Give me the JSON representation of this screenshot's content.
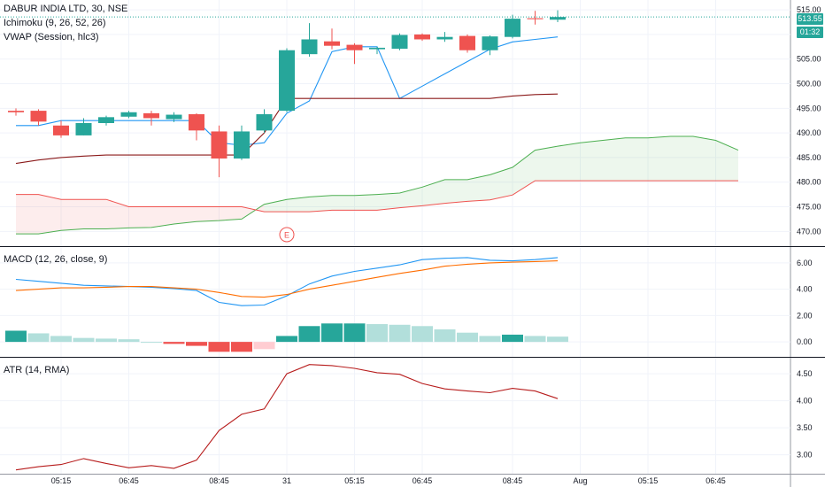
{
  "header": {
    "title": "DABUR INDIA LTD, 30, NSE",
    "ichimoku": "Ichimoku (9, 26, 52, 26)",
    "vwap": "VWAP (Session, hlc3)",
    "macd": "MACD (12, 26, close, 9)",
    "atr": "ATR (14, RMA)"
  },
  "price_tags": {
    "last": "513.55",
    "timer": "01:32"
  },
  "earnings_marker": "E",
  "colors": {
    "up": "#26a69a",
    "down": "#ef5350",
    "vwap": "#2196f3",
    "cloud_up": "#4caf50",
    "cloud_down": "#ef5350",
    "lagging": "#8b1a1a",
    "macd": "#2196f3",
    "signal": "#ff6d00",
    "atr": "#b71c1c"
  },
  "chart_data": [
    {
      "type": "candlestick",
      "title": "DABUR INDIA LTD, 30, NSE",
      "ylim": [
        467,
        517
      ],
      "y_ticks": [
        470,
        475,
        480,
        485,
        490,
        495,
        500,
        505,
        510,
        515
      ],
      "x_tick_labels": [
        {
          "i": 2,
          "label": "05:15"
        },
        {
          "i": 5,
          "label": "06:45"
        },
        {
          "i": 9,
          "label": "08:45"
        },
        {
          "i": 12,
          "label": "31"
        },
        {
          "i": 15,
          "label": "05:15"
        },
        {
          "i": 18,
          "label": "06:45"
        },
        {
          "i": 22,
          "label": "08:45"
        },
        {
          "i": 25,
          "label": "Aug"
        },
        {
          "i": 28,
          "label": "05:15"
        },
        {
          "i": 31,
          "label": "06:45"
        }
      ],
      "candles": [
        {
          "o": 494.5,
          "h": 495.0,
          "l": 493.5,
          "c": 494.2
        },
        {
          "o": 494.5,
          "h": 494.8,
          "l": 491.5,
          "c": 492.3
        },
        {
          "o": 491.5,
          "h": 492.5,
          "l": 489.0,
          "c": 489.5
        },
        {
          "o": 489.5,
          "h": 493.0,
          "l": 489.5,
          "c": 492.0
        },
        {
          "o": 492.0,
          "h": 493.5,
          "l": 491.5,
          "c": 493.2
        },
        {
          "o": 493.3,
          "h": 494.5,
          "l": 493.0,
          "c": 494.2
        },
        {
          "o": 494.0,
          "h": 494.5,
          "l": 491.5,
          "c": 493.0
        },
        {
          "o": 492.8,
          "h": 494.2,
          "l": 492.2,
          "c": 493.7
        },
        {
          "o": 493.8,
          "h": 494.0,
          "l": 488.5,
          "c": 490.5
        },
        {
          "o": 490.3,
          "h": 491.5,
          "l": 481.0,
          "c": 484.8
        },
        {
          "o": 484.8,
          "h": 491.5,
          "l": 484.5,
          "c": 490.3
        },
        {
          "o": 490.5,
          "h": 494.8,
          "l": 490.0,
          "c": 493.8
        },
        {
          "o": 494.5,
          "h": 507.2,
          "l": 494.2,
          "c": 506.8
        },
        {
          "o": 506.0,
          "h": 512.3,
          "l": 505.5,
          "c": 509.0
        },
        {
          "o": 508.6,
          "h": 511.2,
          "l": 507.0,
          "c": 507.7
        },
        {
          "o": 507.9,
          "h": 508.2,
          "l": 504.0,
          "c": 506.8
        },
        {
          "o": 507.0,
          "h": 507.5,
          "l": 506.0,
          "c": 507.3
        },
        {
          "o": 507.1,
          "h": 510.2,
          "l": 506.8,
          "c": 509.9
        },
        {
          "o": 510.0,
          "h": 510.2,
          "l": 508.7,
          "c": 509.0
        },
        {
          "o": 509.0,
          "h": 510.5,
          "l": 508.5,
          "c": 509.5
        },
        {
          "o": 509.7,
          "h": 510.0,
          "l": 506.3,
          "c": 506.8
        },
        {
          "o": 506.8,
          "h": 509.8,
          "l": 505.8,
          "c": 509.6
        },
        {
          "o": 509.5,
          "h": 514.0,
          "l": 509.2,
          "c": 513.2
        },
        {
          "o": 513.3,
          "h": 514.8,
          "l": 512.0,
          "c": 513.1
        },
        {
          "o": 513.0,
          "h": 514.9,
          "l": 512.5,
          "c": 513.55
        }
      ],
      "series": [
        {
          "name": "Tenkan",
          "style": "line",
          "color": "#2196f3",
          "values": [
            491.5,
            491.5,
            492.5,
            492.5,
            492.5,
            492.5,
            492.5,
            492.5,
            492.5,
            488.0,
            487.5,
            488.0,
            494.0,
            496.5,
            506.5,
            507.5,
            507.5,
            497.0,
            499.5,
            502.0,
            504.5,
            507.0,
            508.5,
            509.0,
            509.5
          ]
        },
        {
          "name": "Kijun",
          "style": "line",
          "color": "#8b1a1a",
          "values": [
            483.8,
            484.5,
            485.0,
            485.3,
            485.5,
            485.5,
            485.5,
            485.5,
            485.5,
            485.5,
            485.5,
            490.0,
            497.0,
            497.0,
            497.0,
            497.0,
            497.0,
            497.0,
            497.0,
            497.0,
            497.0,
            497.0,
            497.5,
            497.8,
            497.9
          ]
        }
      ],
      "cloud": {
        "span_a": [
          469.5,
          469.5,
          470.2,
          470.5,
          470.5,
          470.7,
          470.8,
          471.5,
          472.0,
          472.2,
          472.5,
          475.5,
          476.5,
          477.0,
          477.3,
          477.3,
          477.5,
          477.8,
          479.0,
          480.5,
          480.5,
          481.5,
          483.0,
          486.5,
          487.3,
          488.0,
          488.5,
          489.0,
          489.0,
          489.3,
          489.3,
          488.5,
          486.5
        ],
        "span_b": [
          477.5,
          477.5,
          476.5,
          476.5,
          476.5,
          475.0,
          475.0,
          475.0,
          475.0,
          475.0,
          475.0,
          474.0,
          474.0,
          474.0,
          474.3,
          474.3,
          474.3,
          474.8,
          475.2,
          475.7,
          476.1,
          476.4,
          477.4,
          480.3,
          480.3,
          480.3,
          480.3,
          480.3,
          480.3,
          480.3,
          480.3,
          480.3,
          480.3
        ]
      }
    },
    {
      "type": "line",
      "title": "MACD (12, 26, close, 9)",
      "ylim": [
        -1,
        7
      ],
      "y_ticks": [
        0,
        2,
        4,
        6
      ],
      "series": [
        {
          "name": "MACD",
          "color": "#2196f3",
          "values": [
            4.75,
            4.6,
            4.45,
            4.3,
            4.25,
            4.2,
            4.15,
            4.05,
            3.9,
            3.0,
            2.75,
            2.8,
            3.5,
            4.4,
            5.0,
            5.35,
            5.6,
            5.85,
            6.25,
            6.35,
            6.4,
            6.2,
            6.15,
            6.25,
            6.4
          ]
        },
        {
          "name": "Signal",
          "color": "#ff6d00",
          "values": [
            3.9,
            4.0,
            4.1,
            4.1,
            4.15,
            4.2,
            4.2,
            4.1,
            4.0,
            3.75,
            3.45,
            3.4,
            3.6,
            4.0,
            4.3,
            4.6,
            4.9,
            5.2,
            5.45,
            5.75,
            5.9,
            6.0,
            6.05,
            6.1,
            6.15
          ]
        }
      ],
      "histogram": [
        0.85,
        0.65,
        0.45,
        0.3,
        0.25,
        0.2,
        0.0,
        -0.15,
        -0.3,
        -0.75,
        -0.75,
        -0.55,
        0.45,
        1.2,
        1.4,
        1.4,
        1.35,
        1.3,
        1.2,
        0.95,
        0.7,
        0.45,
        0.55,
        0.45,
        0.4
      ]
    },
    {
      "type": "line",
      "title": "ATR (14, RMA)",
      "ylim": [
        2.65,
        4.78
      ],
      "y_ticks": [
        3.0,
        3.5,
        4.0,
        4.5
      ],
      "series": [
        {
          "name": "ATR",
          "color": "#b71c1c",
          "values": [
            2.72,
            2.78,
            2.82,
            2.93,
            2.84,
            2.76,
            2.8,
            2.75,
            2.9,
            3.45,
            3.75,
            3.85,
            4.5,
            4.67,
            4.65,
            4.6,
            4.52,
            4.49,
            4.32,
            4.22,
            4.18,
            4.15,
            4.23,
            4.18,
            4.04
          ]
        }
      ]
    }
  ]
}
